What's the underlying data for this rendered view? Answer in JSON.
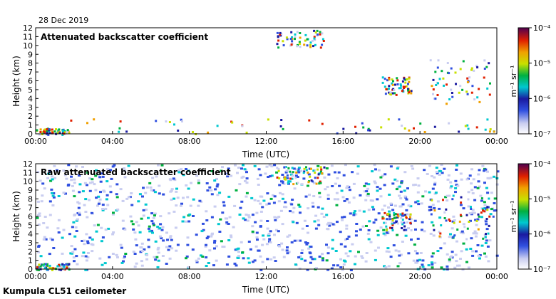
{
  "header": {
    "date": "28 Dec 2019"
  },
  "footer": {
    "site": "Kumpula CL51 ceilometer"
  },
  "chart_data": [
    {
      "type": "heatmap",
      "title": "Attenuated backscatter coefficient",
      "xlabel": "Time (UTC)",
      "ylabel": "Height (km)",
      "x_ticks": [
        "00:00",
        "04:00",
        "08:00",
        "12:00",
        "16:00",
        "20:00",
        "00:00"
      ],
      "y_ticks": [
        0,
        1,
        2,
        3,
        4,
        5,
        6,
        7,
        8,
        9,
        10,
        11,
        12
      ],
      "xlim_hours": [
        0,
        24
      ],
      "ylim_km": [
        0,
        12
      ],
      "colorbar": {
        "unit_label": "m⁻¹ sr⁻¹",
        "scale": "log",
        "tick_labels": [
          "10⁻⁴",
          "10⁻⁵",
          "10⁻⁶",
          "10⁻⁷"
        ]
      },
      "background_color": "#ffffff",
      "features": [
        {
          "hours": [
            0,
            1.7
          ],
          "km": [
            0,
            0.7
          ],
          "level": "low-level aerosol layer"
        },
        {
          "hours": [
            1.7,
            24
          ],
          "km": [
            0,
            1.8
          ],
          "level": "boundary layer"
        },
        {
          "hours": [
            12.5,
            15
          ],
          "km": [
            9.8,
            11.8
          ],
          "level": "high cloud"
        },
        {
          "hours": [
            18,
            19.5
          ],
          "km": [
            4.5,
            6.5
          ],
          "level": "mid cloud"
        },
        {
          "hours": [
            20.5,
            23.8
          ],
          "km": [
            3.5,
            8.5
          ],
          "level": "descending cloud layer"
        }
      ]
    },
    {
      "type": "heatmap",
      "title": "Raw attenuated backscatter coefficient",
      "xlabel": "Time (UTC)",
      "ylabel": "Height (km)",
      "x_ticks": [
        "00:00",
        "04:00",
        "08:00",
        "12:00",
        "16:00",
        "20:00",
        "00:00"
      ],
      "y_ticks": [
        0,
        1,
        2,
        3,
        4,
        5,
        6,
        7,
        8,
        9,
        10,
        11,
        12
      ],
      "xlim_hours": [
        0,
        24
      ],
      "ylim_km": [
        0,
        12
      ],
      "colorbar": {
        "unit_label": "m⁻¹ sr⁻¹",
        "scale": "log",
        "tick_labels": [
          "10⁻⁴",
          "10⁻⁵",
          "10⁻⁶",
          "10⁻⁷"
        ]
      },
      "background_color": "noise",
      "features": [
        {
          "hours": [
            0,
            1.7
          ],
          "km": [
            0,
            0.7
          ],
          "level": "low-level aerosol layer"
        },
        {
          "hours": [
            12.5,
            15
          ],
          "km": [
            9.8,
            11.8
          ],
          "level": "high cloud"
        },
        {
          "hours": [
            18,
            19.5
          ],
          "km": [
            4.5,
            6.5
          ],
          "level": "mid cloud"
        },
        {
          "hours": [
            20.5,
            23.8
          ],
          "km": [
            3.5,
            8.5
          ],
          "level": "descending cloud layer"
        }
      ]
    }
  ]
}
